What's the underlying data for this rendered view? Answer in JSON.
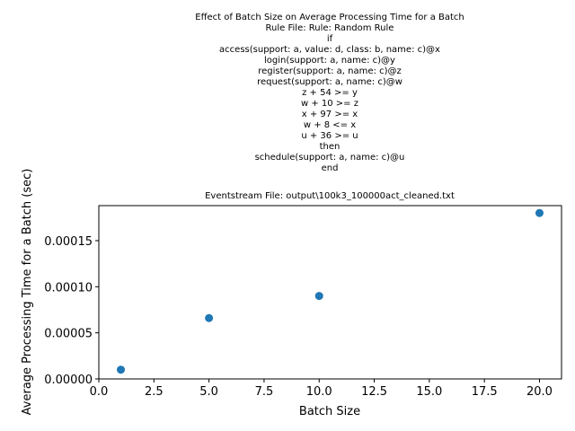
{
  "chart_data": {
    "type": "scatter",
    "title_lines": [
      "Effect of Batch Size on Average Processing Time for a Batch",
      "Rule File: Rule: Random Rule",
      "if",
      "access(support: a, value: d, class: b, name: c)@x",
      "login(support: a, name: c)@y",
      "register(support: a, name: c)@z",
      "request(support: a, name: c)@w",
      "z + 54 >= y",
      "w + 10 >= z",
      "x + 97 >= x",
      "w + 8 <= x",
      "u + 36 >= u",
      "then",
      "schedule(support: a, name: c)@u",
      "end"
    ],
    "subtitle": "Eventstream File: output\\100k3_100000act_cleaned.txt",
    "xlabel": "Batch Size",
    "ylabel": "Average Processing Time for a Batch (sec)",
    "xlim": [
      0,
      21
    ],
    "ylim": [
      0,
      0.000188
    ],
    "xticks": [
      0.0,
      2.5,
      5.0,
      7.5,
      10.0,
      12.5,
      15.0,
      17.5,
      20.0
    ],
    "xtick_labels": [
      "0.0",
      "2.5",
      "5.0",
      "7.5",
      "10.0",
      "12.5",
      "15.0",
      "17.5",
      "20.0"
    ],
    "yticks": [
      0,
      5e-05,
      0.0001,
      0.00015
    ],
    "ytick_labels": [
      "0.00000",
      "0.00005",
      "0.00010",
      "0.00015"
    ],
    "x": [
      1,
      5,
      10,
      20
    ],
    "y": [
      1e-05,
      6.6e-05,
      9e-05,
      0.00018
    ],
    "marker_color": "#1f77b4",
    "grid": false,
    "legend": "none"
  }
}
